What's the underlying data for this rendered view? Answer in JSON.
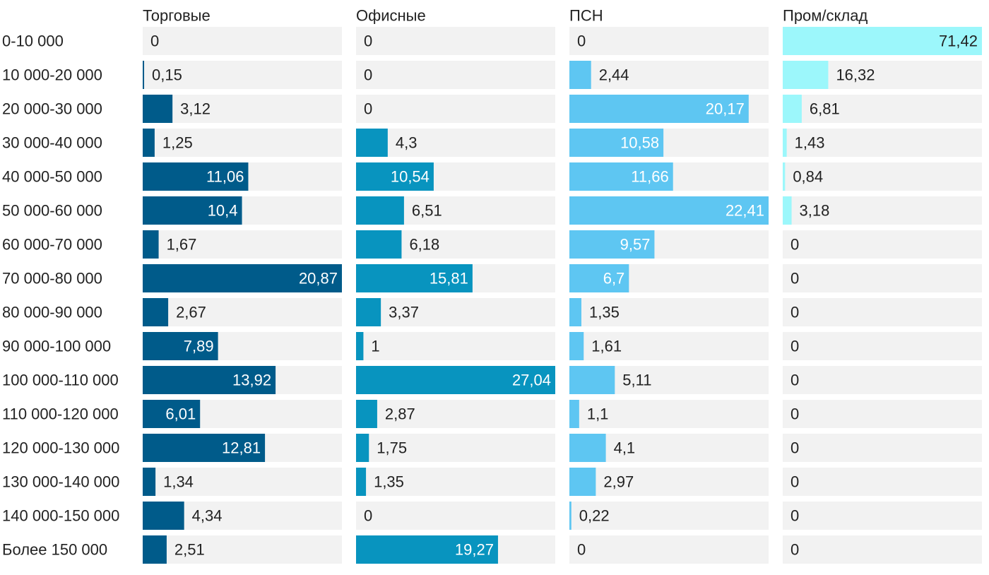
{
  "chart_data": {
    "type": "bar",
    "orientation": "horizontal",
    "layout": "small-multiples",
    "categories": [
      "0-10 000",
      "10 000-20 000",
      "20 000-30 000",
      "30 000-40 000",
      "40 000-50 000",
      "50 000-60 000",
      "60 000-70 000",
      "70 000-80 000",
      "80 000-90 000",
      "90 000-100 000",
      "100 000-110 000",
      "110 000-120 000",
      "120 000-130 000",
      "130 000-140 000",
      "140 000-150 000",
      "Более 150 000"
    ],
    "series": [
      {
        "name": "Торговые",
        "color": "#005b8a",
        "max": 20.87,
        "values": [
          0,
          0.15,
          3.12,
          1.25,
          11.06,
          10.4,
          1.67,
          20.87,
          2.67,
          7.89,
          13.92,
          6.01,
          12.81,
          1.34,
          4.34,
          2.51
        ],
        "labels": [
          "0",
          "0,15",
          "3,12",
          "1,25",
          "11,06",
          "10,4",
          "1,67",
          "20,87",
          "2,67",
          "7,89",
          "13,92",
          "6,01",
          "12,81",
          "1,34",
          "4,34",
          "2,51"
        ]
      },
      {
        "name": "Офисные",
        "color": "#0894bf",
        "max": 27.04,
        "values": [
          0,
          0,
          0,
          4.3,
          10.54,
          6.51,
          6.18,
          15.81,
          3.37,
          1,
          27.04,
          2.87,
          1.75,
          1.35,
          0,
          19.27
        ],
        "labels": [
          "0",
          "0",
          "0",
          "4,3",
          "10,54",
          "6,51",
          "6,18",
          "15,81",
          "3,37",
          "1",
          "27,04",
          "2,87",
          "1,75",
          "1,35",
          "0",
          "19,27"
        ]
      },
      {
        "name": "ПСН",
        "color": "#5ec6f2",
        "max": 22.41,
        "values": [
          0,
          2.44,
          20.17,
          10.58,
          11.66,
          22.41,
          9.57,
          6.7,
          1.35,
          1.61,
          5.11,
          1.1,
          4.1,
          2.97,
          0.22,
          0
        ],
        "labels": [
          "0",
          "2,44",
          "20,17",
          "10,58",
          "11,66",
          "22,41",
          "9,57",
          "6,7",
          "1,35",
          "1,61",
          "5,11",
          "1,1",
          "4,1",
          "2,97",
          "0,22",
          "0"
        ]
      },
      {
        "name": "Пром/склад",
        "color": "#9cf7fb",
        "max": 71.42,
        "values": [
          71.42,
          16.32,
          6.81,
          1.43,
          0.84,
          3.18,
          0,
          0,
          0,
          0,
          0,
          0,
          0,
          0,
          0,
          0
        ],
        "labels": [
          "71,42",
          "16,32",
          "6,81",
          "1,43",
          "0,84",
          "3,18",
          "0",
          "0",
          "0",
          "0",
          "0",
          "0",
          "0",
          "0",
          "0",
          "0"
        ]
      }
    ],
    "background_color": "#f2f2f2",
    "label_color_dark": "#222222",
    "label_color_light": "#ffffff"
  }
}
